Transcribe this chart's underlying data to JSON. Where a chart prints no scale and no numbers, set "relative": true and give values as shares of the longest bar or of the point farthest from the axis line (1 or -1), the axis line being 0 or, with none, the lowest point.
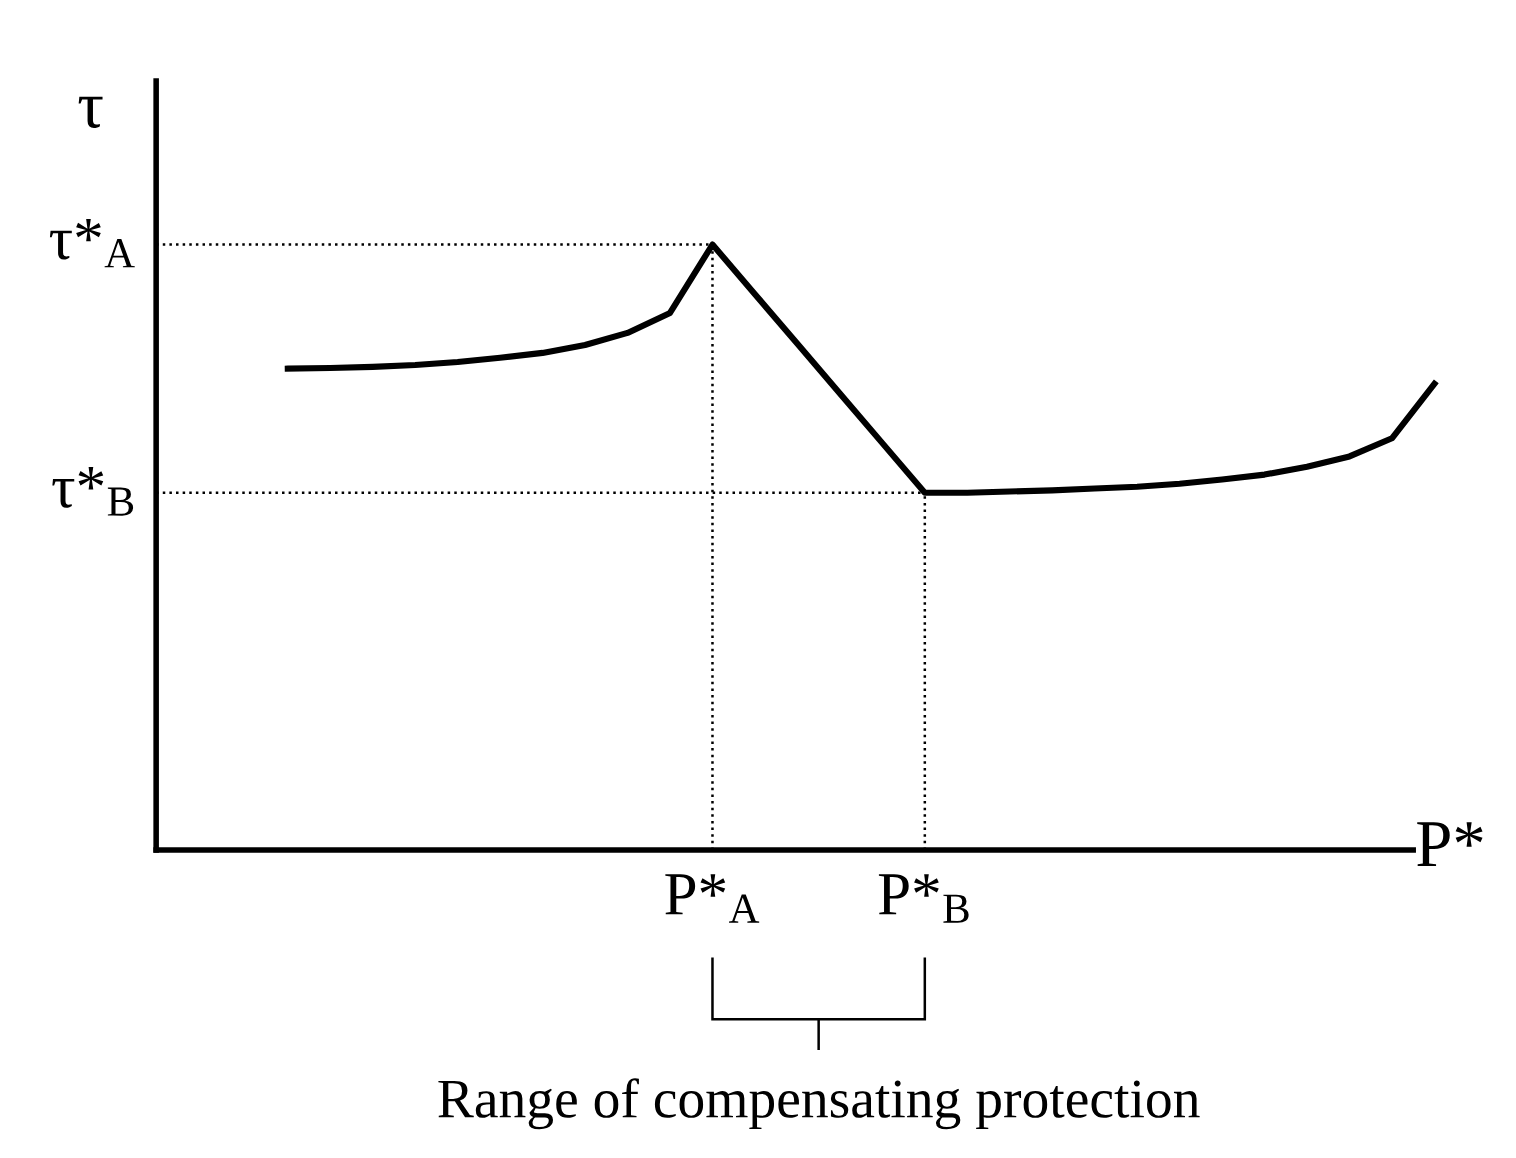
{
  "chart_data": {
    "type": "line",
    "relative": true,
    "xlabel": "P*",
    "ylabel": "τ",
    "categories": [
      null,
      null,
      null,
      null,
      null,
      null,
      null,
      null,
      null,
      null,
      "P*$_{A}$",
      null,
      null,
      null,
      null,
      "P*$_{B}$",
      null,
      null,
      null,
      null,
      null,
      null,
      null,
      null,
      null,
      null,
      null,
      null
    ],
    "ref_lines": [
      {
        "axis": "y",
        "value": 1,
        "label": "τ*$_{A}$",
        "line_style": "dotted",
        "color": "#000000"
      },
      {
        "axis": "y",
        "value": 0.59,
        "label": "τ*$_{B}$",
        "line_style": "dotted",
        "color": "#000000"
      },
      {
        "axis": "x",
        "value": "P*$_{A}$",
        "line_style": "dotted",
        "color": "#000000"
      },
      {
        "axis": "x",
        "value": "P*$_{B}$",
        "line_style": "dotted",
        "color": "#000000"
      }
    ],
    "series": [
      {
        "color": "#000000",
        "values": [
          0.795,
          0.796,
          0.798,
          0.801,
          0.806,
          0.813,
          0.821,
          0.834,
          0.854,
          0.887,
          1,
          0.918,
          0.836,
          0.754,
          0.672,
          0.59,
          0.59,
          0.592,
          0.594,
          0.597,
          0.6,
          0.605,
          0.612,
          0.62,
          0.633,
          0.65,
          0.68,
          0.77
        ]
      }
    ],
    "annotations": [
      "Range of compensating protection"
    ],
    "grid": false,
    "legend": false,
    "marker": "none",
    "line_style": "solid"
  }
}
